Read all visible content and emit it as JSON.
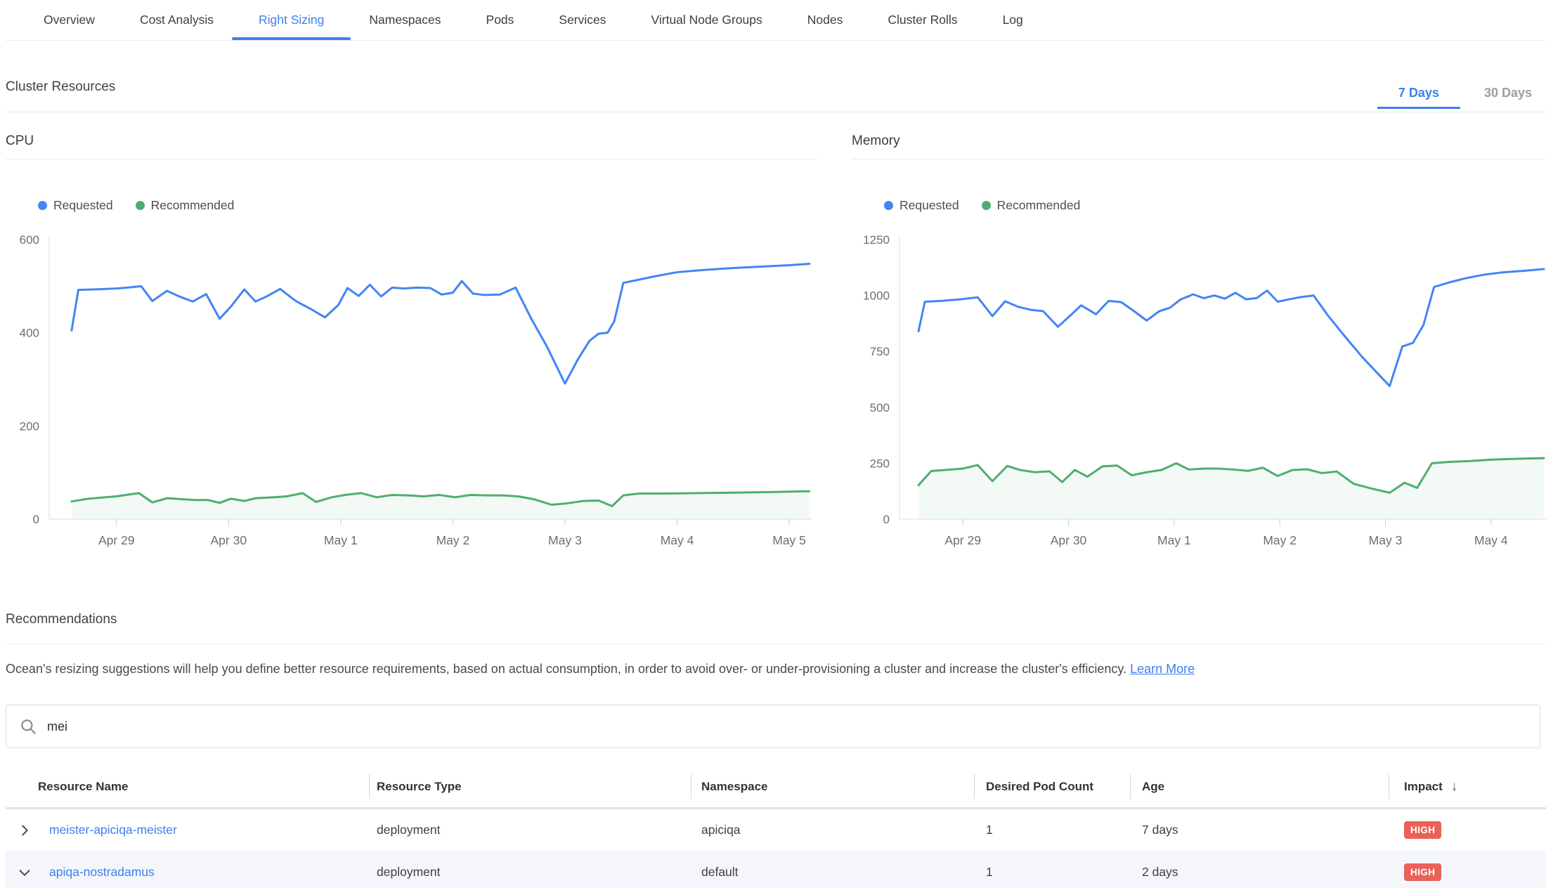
{
  "tabs": {
    "items": [
      {
        "label": "Overview"
      },
      {
        "label": "Cost Analysis"
      },
      {
        "label": "Right Sizing"
      },
      {
        "label": "Namespaces"
      },
      {
        "label": "Pods"
      },
      {
        "label": "Services"
      },
      {
        "label": "Virtual Node Groups"
      },
      {
        "label": "Nodes"
      },
      {
        "label": "Cluster Rolls"
      },
      {
        "label": "Log"
      }
    ],
    "active": "Right Sizing"
  },
  "cluster_resources": {
    "title": "Cluster Resources",
    "periods": [
      {
        "label": "7 Days",
        "active": true
      },
      {
        "label": "30 Days",
        "active": false
      }
    ]
  },
  "recommendations": {
    "title": "Recommendations",
    "description": "Ocean's resizing suggestions will help you define better resource requirements, based on actual consumption, in order to avoid over- or under-provisioning a cluster and increase the cluster's efficiency. ",
    "learn_more_label": "Learn More"
  },
  "search": {
    "value": "mei"
  },
  "table": {
    "columns": [
      "Resource Name",
      "Resource Type",
      "Namespace",
      "Desired Pod Count",
      "Age",
      "Impact"
    ],
    "sort_column": "Impact",
    "sort_direction": "desc",
    "rows": [
      {
        "name": "meister-apiciqa-meister",
        "type": "deployment",
        "namespace": "apiciqa",
        "desired_pod_count": "1",
        "age": "7 days",
        "impact": "HIGH",
        "expanded": false
      },
      {
        "name": "apiqa-nostradamus",
        "type": "deployment",
        "namespace": "default",
        "desired_pod_count": "1",
        "age": "2 days",
        "impact": "HIGH",
        "expanded": true
      }
    ]
  },
  "colors": {
    "accent_blue": "#3d7ff0",
    "requested_blue": "#4285f4",
    "recommended_green": "#4fae6e",
    "impact_high_red": "#ea6158"
  },
  "chart_data": [
    {
      "type": "line",
      "title": "CPU",
      "legend_position": "top-left",
      "grid": false,
      "x_unit": "days (Apr 29 = 0)",
      "xlim": [
        -0.6,
        6.2
      ],
      "ylim": [
        0,
        600
      ],
      "y_ticks": [
        0,
        200,
        400,
        600
      ],
      "x_ticks": [
        {
          "value": 0,
          "label": "Apr 29"
        },
        {
          "value": 1,
          "label": "Apr 30"
        },
        {
          "value": 2,
          "label": "May 1"
        },
        {
          "value": 3,
          "label": "May 2"
        },
        {
          "value": 4,
          "label": "May 3"
        },
        {
          "value": 5,
          "label": "May 4"
        },
        {
          "value": 6,
          "label": "May 5"
        }
      ],
      "series": [
        {
          "name": "Requested",
          "color": "#4285f4",
          "points": [
            [
              -0.4,
              405
            ],
            [
              -0.34,
              492
            ],
            [
              -0.2,
              493
            ],
            [
              0.0,
              495
            ],
            [
              0.1,
              497
            ],
            [
              0.22,
              500
            ],
            [
              0.32,
              468
            ],
            [
              0.45,
              490
            ],
            [
              0.56,
              478
            ],
            [
              0.68,
              467
            ],
            [
              0.8,
              483
            ],
            [
              0.92,
              430
            ],
            [
              1.02,
              456
            ],
            [
              1.14,
              493
            ],
            [
              1.24,
              467
            ],
            [
              1.34,
              478
            ],
            [
              1.46,
              494
            ],
            [
              1.6,
              468
            ],
            [
              1.74,
              450
            ],
            [
              1.86,
              433
            ],
            [
              1.98,
              460
            ],
            [
              2.06,
              496
            ],
            [
              2.16,
              479
            ],
            [
              2.26,
              503
            ],
            [
              2.36,
              478
            ],
            [
              2.46,
              497
            ],
            [
              2.56,
              495
            ],
            [
              2.68,
              497
            ],
            [
              2.8,
              496
            ],
            [
              2.9,
              482
            ],
            [
              3.0,
              486
            ],
            [
              3.08,
              511
            ],
            [
              3.18,
              484
            ],
            [
              3.28,
              481
            ],
            [
              3.42,
              482
            ],
            [
              3.56,
              497
            ],
            [
              3.7,
              430
            ],
            [
              3.84,
              370
            ],
            [
              4.0,
              291
            ],
            [
              4.12,
              345
            ],
            [
              4.22,
              383
            ],
            [
              4.3,
              398
            ],
            [
              4.38,
              400
            ],
            [
              4.44,
              425
            ],
            [
              4.52,
              507
            ],
            [
              4.62,
              512
            ],
            [
              4.8,
              521
            ],
            [
              5.0,
              530
            ],
            [
              5.25,
              535
            ],
            [
              5.5,
              539
            ],
            [
              5.75,
              542
            ],
            [
              6.0,
              545
            ],
            [
              6.18,
              548
            ]
          ]
        },
        {
          "name": "Recommended",
          "color": "#4fae6e",
          "fill": "rgba(79,174,110,0.07)",
          "points": [
            [
              -0.4,
              38
            ],
            [
              -0.25,
              44
            ],
            [
              0.0,
              49
            ],
            [
              0.2,
              56
            ],
            [
              0.32,
              36
            ],
            [
              0.45,
              45
            ],
            [
              0.58,
              43
            ],
            [
              0.7,
              41
            ],
            [
              0.82,
              41
            ],
            [
              0.92,
              35
            ],
            [
              1.02,
              44
            ],
            [
              1.14,
              39
            ],
            [
              1.24,
              45
            ],
            [
              1.4,
              47
            ],
            [
              1.52,
              49
            ],
            [
              1.66,
              56
            ],
            [
              1.78,
              37
            ],
            [
              1.92,
              47
            ],
            [
              2.04,
              52
            ],
            [
              2.18,
              56
            ],
            [
              2.32,
              47
            ],
            [
              2.46,
              52
            ],
            [
              2.6,
              51
            ],
            [
              2.74,
              49
            ],
            [
              2.88,
              52
            ],
            [
              3.02,
              47
            ],
            [
              3.16,
              52
            ],
            [
              3.3,
              51
            ],
            [
              3.44,
              51
            ],
            [
              3.58,
              49
            ],
            [
              3.72,
              43
            ],
            [
              3.88,
              31
            ],
            [
              4.02,
              34
            ],
            [
              4.16,
              39
            ],
            [
              4.3,
              40
            ],
            [
              4.42,
              28
            ],
            [
              4.52,
              51
            ],
            [
              4.66,
              55
            ],
            [
              4.9,
              55
            ],
            [
              5.2,
              56
            ],
            [
              5.5,
              57
            ],
            [
              5.8,
              58
            ],
            [
              6.18,
              60
            ]
          ]
        }
      ]
    },
    {
      "type": "line",
      "title": "Memory",
      "legend_position": "top-left",
      "grid": false,
      "x_unit": "days (Apr 29 = 0)",
      "xlim": [
        -0.6,
        5.52
      ],
      "ylim": [
        0,
        1250
      ],
      "y_ticks": [
        0,
        250,
        500,
        750,
        1000,
        1250
      ],
      "x_ticks": [
        {
          "value": 0,
          "label": "Apr 29"
        },
        {
          "value": 1,
          "label": "Apr 30"
        },
        {
          "value": 2,
          "label": "May 1"
        },
        {
          "value": 3,
          "label": "May 2"
        },
        {
          "value": 4,
          "label": "May 3"
        },
        {
          "value": 5,
          "label": "May 4"
        }
      ],
      "series": [
        {
          "name": "Requested",
          "color": "#4285f4",
          "points": [
            [
              -0.42,
              840
            ],
            [
              -0.36,
              972
            ],
            [
              -0.2,
              976
            ],
            [
              0.0,
              984
            ],
            [
              0.14,
              992
            ],
            [
              0.28,
              908
            ],
            [
              0.4,
              974
            ],
            [
              0.52,
              950
            ],
            [
              0.64,
              936
            ],
            [
              0.76,
              930
            ],
            [
              0.9,
              860
            ],
            [
              1.02,
              912
            ],
            [
              1.12,
              956
            ],
            [
              1.26,
              916
            ],
            [
              1.38,
              976
            ],
            [
              1.5,
              970
            ],
            [
              1.62,
              930
            ],
            [
              1.74,
              888
            ],
            [
              1.86,
              930
            ],
            [
              1.96,
              945
            ],
            [
              2.06,
              982
            ],
            [
              2.18,
              1005
            ],
            [
              2.28,
              988
            ],
            [
              2.38,
              1000
            ],
            [
              2.48,
              986
            ],
            [
              2.58,
              1012
            ],
            [
              2.68,
              983
            ],
            [
              2.78,
              988
            ],
            [
              2.88,
              1022
            ],
            [
              2.98,
              972
            ],
            [
              3.08,
              982
            ],
            [
              3.2,
              993
            ],
            [
              3.32,
              1000
            ],
            [
              3.46,
              908
            ],
            [
              3.62,
              815
            ],
            [
              3.78,
              725
            ],
            [
              3.92,
              655
            ],
            [
              4.04,
              595
            ],
            [
              4.16,
              772
            ],
            [
              4.26,
              788
            ],
            [
              4.36,
              868
            ],
            [
              4.46,
              1038
            ],
            [
              4.6,
              1058
            ],
            [
              4.76,
              1077
            ],
            [
              4.92,
              1092
            ],
            [
              5.1,
              1103
            ],
            [
              5.3,
              1110
            ],
            [
              5.5,
              1118
            ]
          ]
        },
        {
          "name": "Recommended",
          "color": "#4fae6e",
          "fill": "rgba(79,174,110,0.07)",
          "points": [
            [
              -0.42,
              152
            ],
            [
              -0.3,
              215
            ],
            [
              0.0,
              226
            ],
            [
              0.14,
              242
            ],
            [
              0.28,
              170
            ],
            [
              0.42,
              238
            ],
            [
              0.54,
              220
            ],
            [
              0.68,
              210
            ],
            [
              0.82,
              214
            ],
            [
              0.94,
              166
            ],
            [
              1.06,
              220
            ],
            [
              1.18,
              190
            ],
            [
              1.32,
              236
            ],
            [
              1.46,
              240
            ],
            [
              1.6,
              196
            ],
            [
              1.74,
              210
            ],
            [
              1.88,
              220
            ],
            [
              2.02,
              250
            ],
            [
              2.14,
              222
            ],
            [
              2.28,
              226
            ],
            [
              2.42,
              226
            ],
            [
              2.56,
              222
            ],
            [
              2.7,
              216
            ],
            [
              2.84,
              230
            ],
            [
              2.98,
              193
            ],
            [
              3.12,
              220
            ],
            [
              3.26,
              223
            ],
            [
              3.4,
              206
            ],
            [
              3.54,
              213
            ],
            [
              3.7,
              158
            ],
            [
              3.86,
              138
            ],
            [
              4.04,
              118
            ],
            [
              4.18,
              163
            ],
            [
              4.3,
              140
            ],
            [
              4.44,
              250
            ],
            [
              4.6,
              256
            ],
            [
              4.8,
              260
            ],
            [
              5.0,
              266
            ],
            [
              5.25,
              270
            ],
            [
              5.5,
              273
            ]
          ]
        }
      ]
    }
  ]
}
